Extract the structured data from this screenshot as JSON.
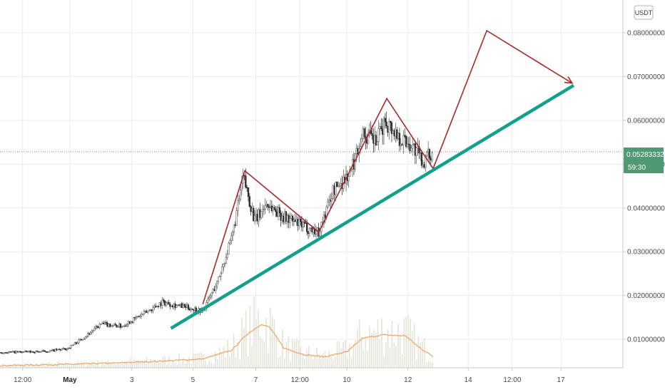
{
  "currency_badge": "USDT",
  "last_price": {
    "value": "0.05283332",
    "countdown": "59:30",
    "color": "#4f9a72"
  },
  "chart_data": {
    "type": "line",
    "title": "",
    "xlabel": "",
    "ylabel": "",
    "ylim": [
      0.0035,
      0.0875
    ],
    "xlim": [
      0,
      21.5
    ],
    "grid": true,
    "y_ticks": [
      "0.01000000",
      "0.02000000",
      "0.03000000",
      "0.04000000",
      "0.05000000",
      "0.06000000",
      "0.07000000",
      "0.08000000"
    ],
    "y_tick_values": [
      0.01,
      0.02,
      0.03,
      0.04,
      0.05,
      0.06,
      0.07,
      0.08
    ],
    "x_ticks": [
      {
        "label": "12:00",
        "x": 0.78,
        "bold": false
      },
      {
        "label": "May",
        "x": 2.41,
        "bold": true
      },
      {
        "label": "3",
        "x": 4.55,
        "bold": false
      },
      {
        "label": "5",
        "x": 6.66,
        "bold": false
      },
      {
        "label": "7",
        "x": 8.83,
        "bold": false
      },
      {
        "label": "12:00",
        "x": 10.35,
        "bold": false
      },
      {
        "label": "10",
        "x": 11.97,
        "bold": false
      },
      {
        "label": "12",
        "x": 14.08,
        "bold": false
      },
      {
        "label": "14",
        "x": 16.16,
        "bold": false
      },
      {
        "label": "12:00",
        "x": 17.68,
        "bold": false
      },
      {
        "label": "17",
        "x": 19.36,
        "bold": false
      }
    ],
    "price_series": {
      "name": "",
      "color": "#333333",
      "anchors": [
        [
          0.0,
          0.007
        ],
        [
          1.5,
          0.0072
        ],
        [
          2.3,
          0.0078
        ],
        [
          2.8,
          0.01
        ],
        [
          3.5,
          0.0135
        ],
        [
          4.2,
          0.013
        ],
        [
          5.0,
          0.016
        ],
        [
          5.6,
          0.0185
        ],
        [
          6.3,
          0.0175
        ],
        [
          7.0,
          0.0165
        ],
        [
          7.5,
          0.023
        ],
        [
          8.0,
          0.033
        ],
        [
          8.4,
          0.047
        ],
        [
          8.8,
          0.037
        ],
        [
          9.2,
          0.041
        ],
        [
          9.8,
          0.038
        ],
        [
          10.4,
          0.036
        ],
        [
          11.0,
          0.0345
        ],
        [
          11.5,
          0.044
        ],
        [
          12.1,
          0.048
        ],
        [
          12.5,
          0.057
        ],
        [
          13.0,
          0.055
        ],
        [
          13.3,
          0.06
        ],
        [
          13.8,
          0.056
        ],
        [
          14.2,
          0.0545
        ],
        [
          14.6,
          0.0505
        ],
        [
          14.95,
          0.0528
        ]
      ]
    },
    "volume_ma_series": {
      "name": "",
      "color": "#f0a25e",
      "anchors": [
        [
          0.0,
          0.004
        ],
        [
          2.5,
          0.0043
        ],
        [
          4.0,
          0.0046
        ],
        [
          5.5,
          0.005
        ],
        [
          7.0,
          0.0055
        ],
        [
          8.0,
          0.0075
        ],
        [
          8.5,
          0.011
        ],
        [
          9.0,
          0.0134
        ],
        [
          9.3,
          0.0128
        ],
        [
          9.8,
          0.008
        ],
        [
          10.5,
          0.0065
        ],
        [
          11.2,
          0.006
        ],
        [
          12.0,
          0.0072
        ],
        [
          12.5,
          0.0102
        ],
        [
          13.2,
          0.011
        ],
        [
          14.0,
          0.0108
        ],
        [
          14.4,
          0.0085
        ],
        [
          15.0,
          0.0058
        ]
      ]
    },
    "annotations": [
      {
        "kind": "polyline",
        "color": "#a52a2a",
        "points": [
          [
            7.0,
            0.018
          ],
          [
            8.45,
            0.0485
          ],
          [
            11.0,
            0.0345
          ],
          [
            13.35,
            0.065
          ],
          [
            14.95,
            0.049
          ],
          [
            16.8,
            0.0805
          ],
          [
            19.75,
            0.0685
          ]
        ]
      },
      {
        "kind": "trendline",
        "color": "#13a08a",
        "points": [
          [
            5.9,
            0.0125
          ],
          [
            19.8,
            0.068
          ]
        ]
      }
    ]
  }
}
